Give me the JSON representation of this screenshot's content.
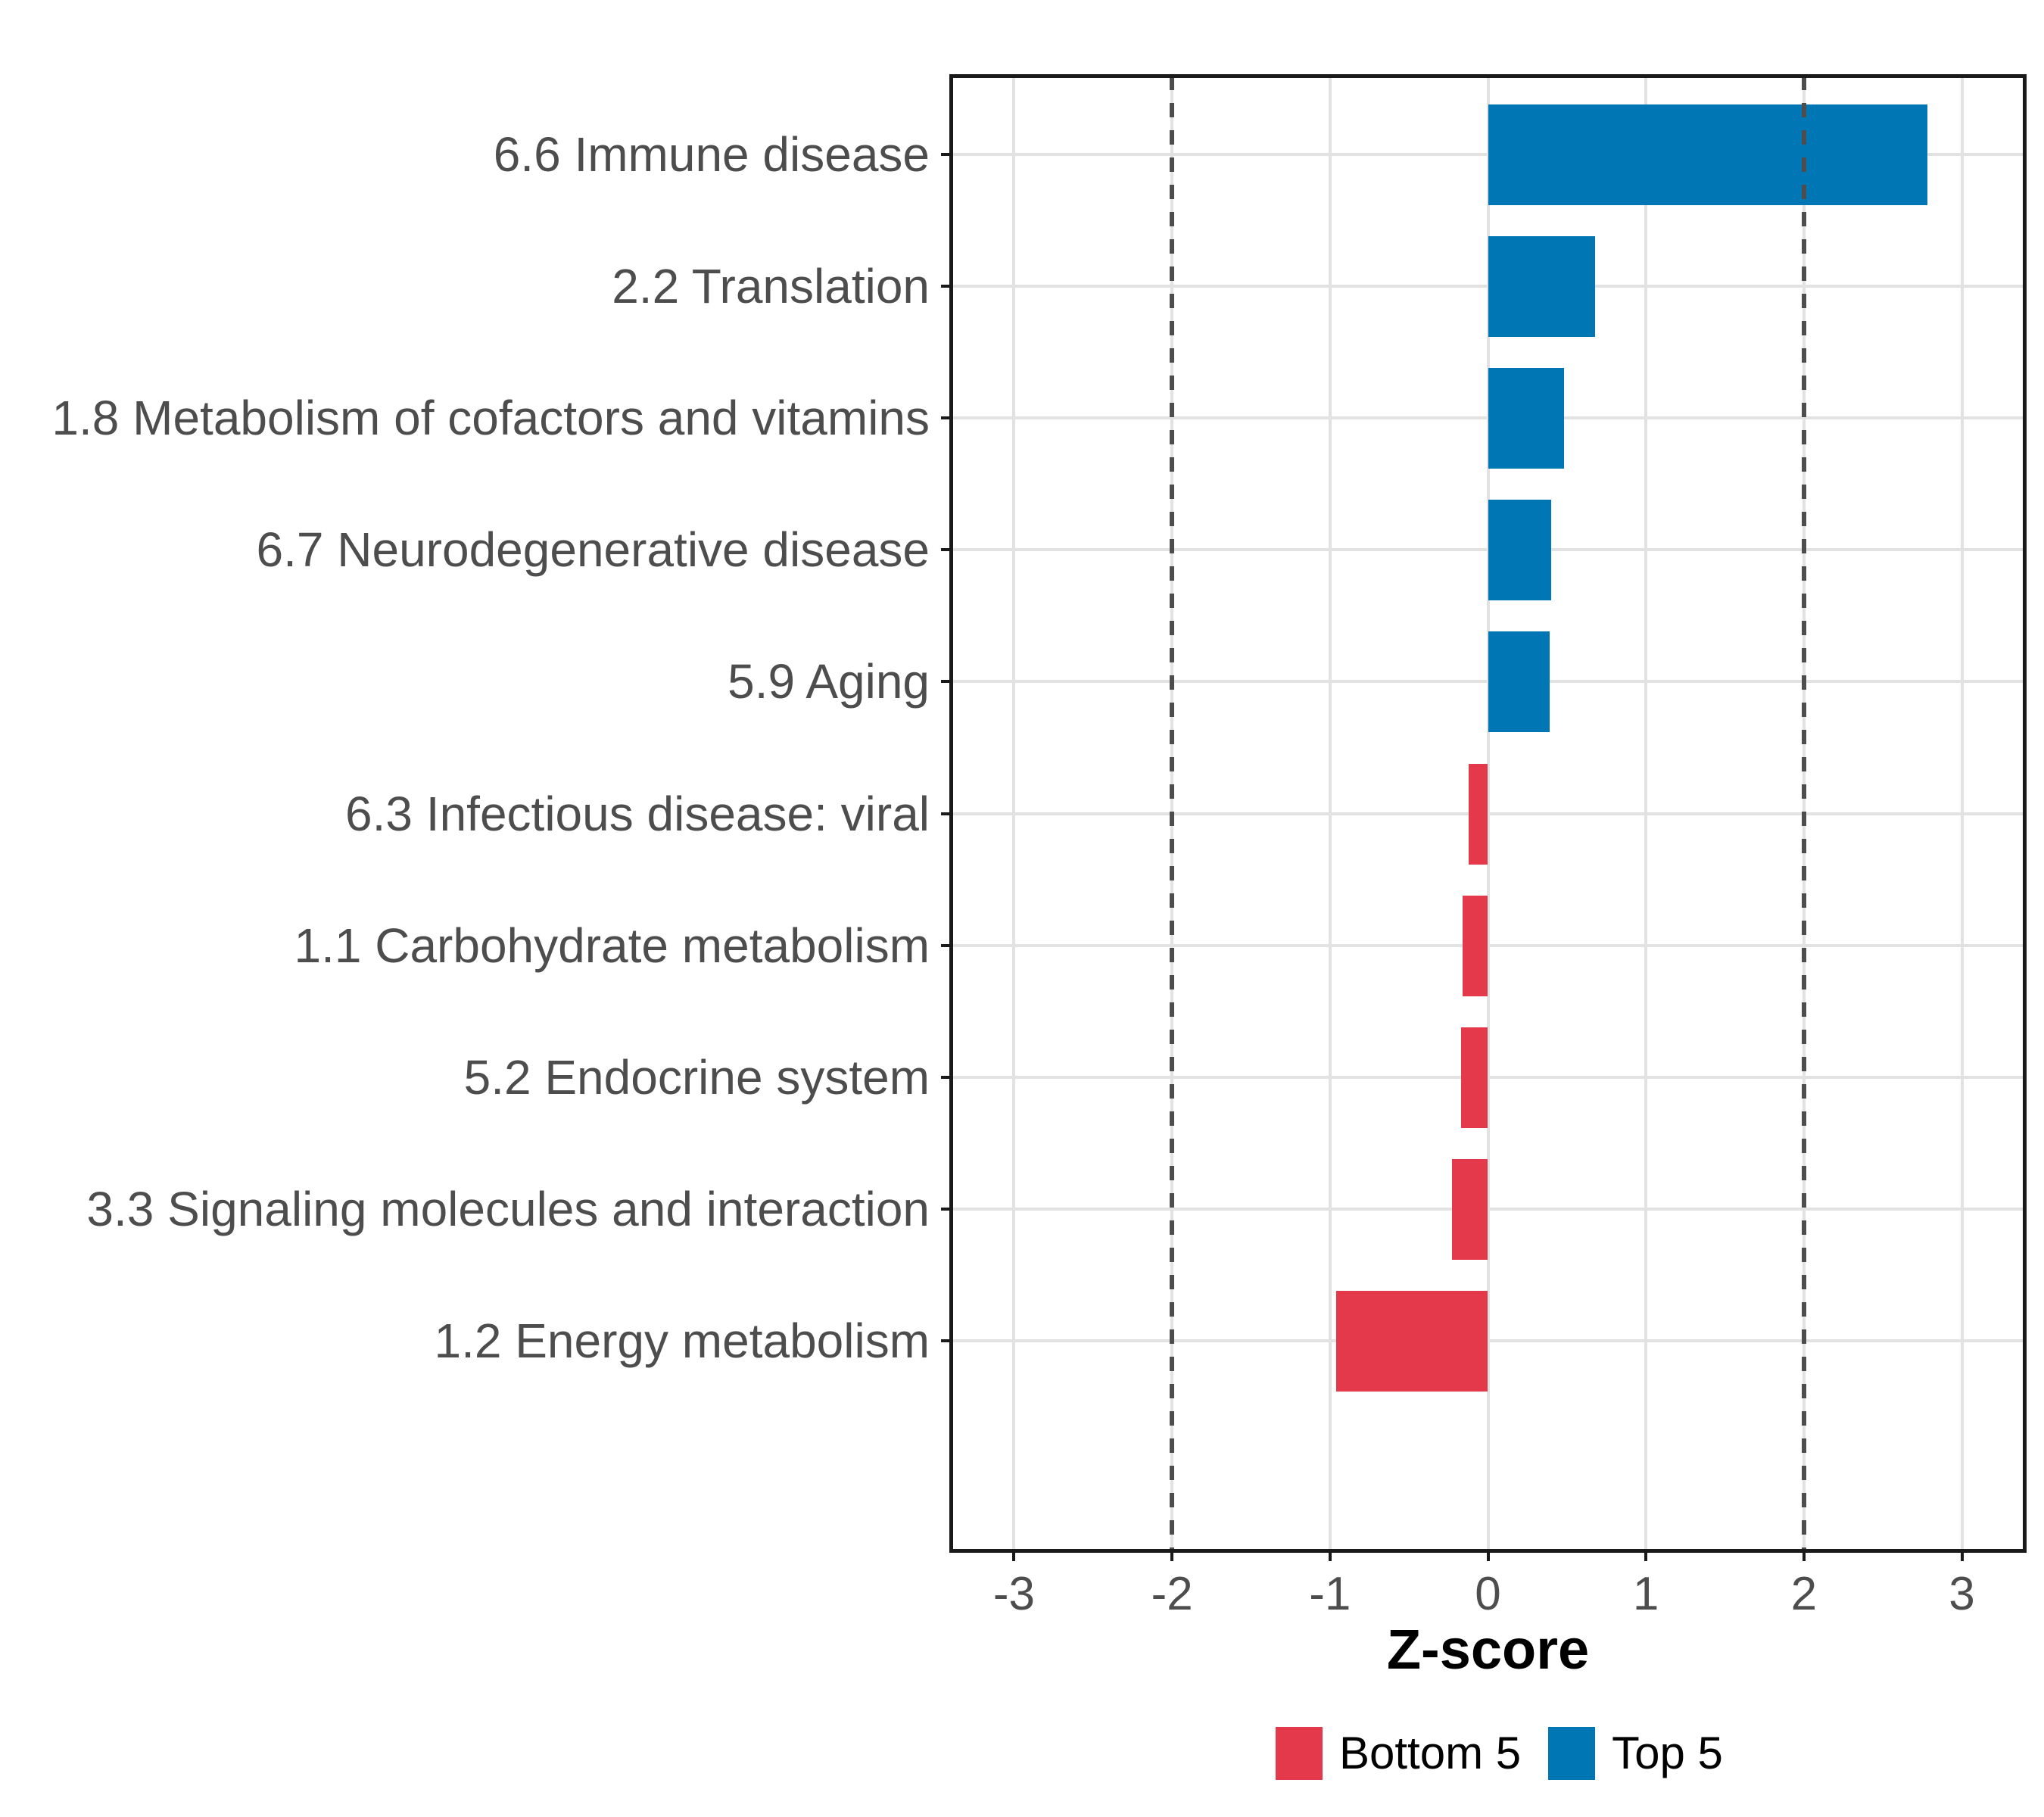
{
  "chart_data": {
    "type": "bar",
    "orientation": "horizontal",
    "title": "",
    "xlabel": "Z-score",
    "categories": [
      "6.6 Immune disease",
      "2.2 Translation",
      "1.8 Metabolism of cofactors and vitamins",
      "6.7 Neurodegenerative disease",
      "5.9 Aging",
      "6.3 Infectious disease: viral",
      "1.1 Carbohydrate metabolism",
      "5.2 Endocrine system",
      "3.3 Signaling molecules and interaction",
      "1.2 Energy metabolism"
    ],
    "series": [
      {
        "name": "Z-score",
        "values": [
          2.78,
          0.68,
          0.48,
          0.4,
          0.39,
          -0.12,
          -0.16,
          -0.17,
          -0.23,
          -0.96
        ]
      }
    ],
    "bar_groups": [
      "Top 5",
      "Top 5",
      "Top 5",
      "Top 5",
      "Top 5",
      "Bottom 5",
      "Bottom 5",
      "Bottom 5",
      "Bottom 5",
      "Bottom 5"
    ],
    "x_ticks": [
      -3,
      -2,
      -1,
      0,
      1,
      2,
      3
    ],
    "xlim": [
      -3.4,
      3.4
    ],
    "reference_lines": [
      -2,
      2
    ],
    "grid": "major-only",
    "legend_position": "bottom",
    "legend": [
      {
        "label": "Bottom 5",
        "color": "#E4394B"
      },
      {
        "label": "Top 5",
        "color": "#0076B4"
      }
    ],
    "colors": {
      "top5": "#0076B4",
      "bottom5": "#E4394B",
      "grid": "#E2E2E2",
      "reference": "#4D4D4D",
      "axis_text": "#4D4D4D",
      "tick_mark": "#1A1A1A",
      "border": "#1A1A1A"
    }
  }
}
